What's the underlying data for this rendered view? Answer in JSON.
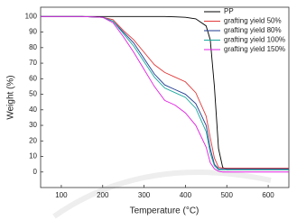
{
  "chart_data": {
    "type": "line",
    "xlabel": "Temperature (°C)",
    "ylabel": "Weight (%)",
    "x": [
      50,
      100,
      150,
      200,
      225,
      250,
      275,
      300,
      325,
      350,
      375,
      400,
      425,
      450,
      460,
      470,
      480,
      490,
      500,
      550,
      600,
      650
    ],
    "xlim": [
      50,
      650
    ],
    "xticks": [
      100,
      200,
      300,
      400,
      500,
      600
    ],
    "ylim": [
      -10,
      106
    ],
    "yticks": [
      0,
      10,
      20,
      30,
      40,
      50,
      60,
      70,
      80,
      90,
      100
    ],
    "legend": "upper right",
    "series": [
      {
        "name": "PP",
        "color": "#000000",
        "values": [
          100,
          100,
          100,
          100,
          100,
          100,
          100,
          100,
          100,
          100,
          99.8,
          99.5,
          98.5,
          94,
          85,
          55,
          15,
          3,
          1.5,
          1.5,
          1.5,
          1.5
        ]
      },
      {
        "name": "grafting yield 50%",
        "color": "#e03a3a",
        "values": [
          100,
          100,
          100,
          99.5,
          98,
          91,
          85,
          77,
          69,
          64,
          61,
          58,
          51,
          36,
          22,
          9,
          3,
          2.5,
          2.5,
          2.5,
          2.5,
          2.5
        ]
      },
      {
        "name": "grafting yield 80%",
        "color": "#1f3a8f",
        "values": [
          100,
          100,
          100,
          99.5,
          97,
          90,
          83,
          73,
          63,
          56,
          53,
          50,
          44,
          30,
          15,
          5,
          2,
          2,
          2,
          2,
          2,
          2
        ]
      },
      {
        "name": "grafting yield 100%",
        "color": "#18a89c",
        "values": [
          100,
          100,
          100,
          99.5,
          97,
          89,
          81,
          71,
          61,
          54,
          51,
          48,
          41,
          26,
          12,
          4,
          1.5,
          1.5,
          1.5,
          1.5,
          1.5,
          1.5
        ]
      },
      {
        "name": "grafting yield 150%",
        "color": "#e020e0",
        "values": [
          100,
          100,
          100,
          99.5,
          96,
          87,
          77,
          66,
          55,
          46,
          43,
          38,
          30,
          16,
          6,
          2,
          0.5,
          0,
          0,
          0,
          0,
          0
        ]
      }
    ]
  }
}
